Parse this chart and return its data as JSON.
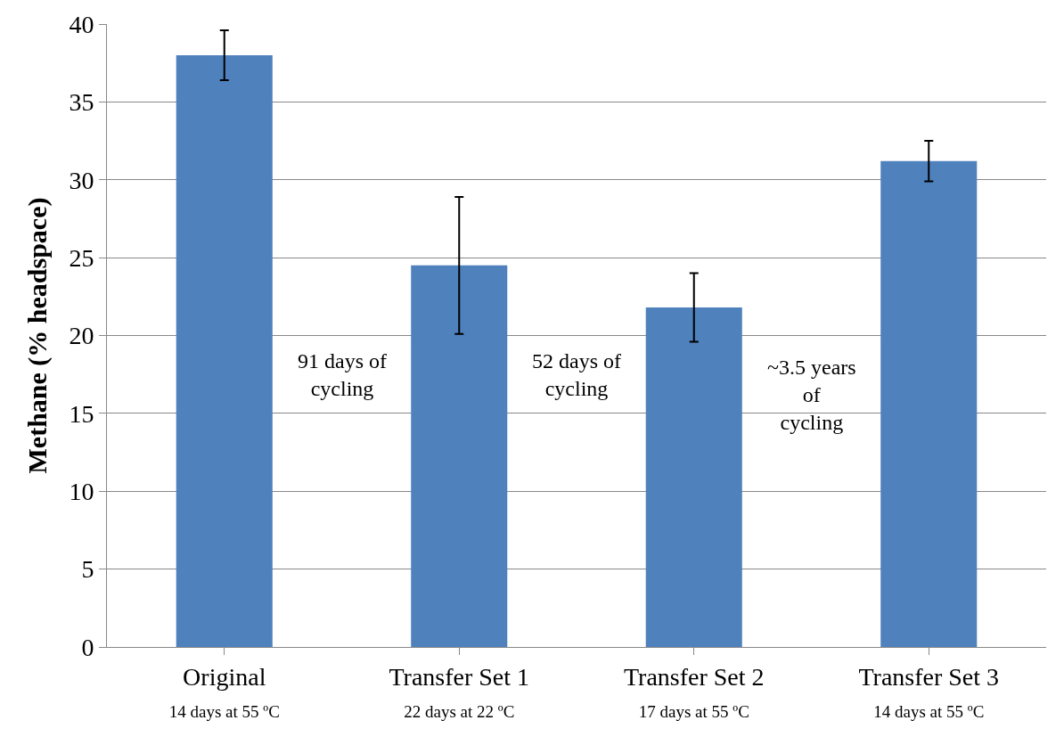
{
  "chart_data": {
    "type": "bar",
    "ylabel": "Methane (% headspace)",
    "categories": [
      "Original\n14 days at 55 ºC",
      "Transfer Set 1\n22 days at 22 ºC",
      "Transfer Set 2\n17 days at 55 ºC",
      "Transfer Set 3\n14 days at 55 ºC"
    ],
    "values": [
      38.0,
      24.5,
      21.8,
      31.2
    ],
    "errors": [
      [
        36.4,
        39.6
      ],
      [
        20.1,
        28.9
      ],
      [
        19.6,
        24.0
      ],
      [
        29.9,
        32.5
      ]
    ],
    "color": "#4f81bd",
    "ylim": [
      0,
      40
    ],
    "yticks": [
      0,
      5,
      10,
      15,
      20,
      25,
      30,
      35,
      40
    ],
    "grid": "y",
    "annotations": [
      "91 days of\ncycling",
      "52 days of\ncycling",
      "~3.5 years\nof\ncycling"
    ]
  }
}
